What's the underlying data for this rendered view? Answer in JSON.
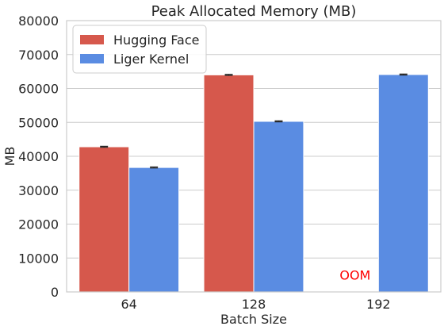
{
  "chart_data": {
    "type": "bar",
    "title": "Peak Allocated Memory (MB)",
    "xlabel": "Batch Size",
    "ylabel": "MB",
    "categories": [
      "64",
      "128",
      "192"
    ],
    "ylim": [
      0,
      80000
    ],
    "yticks": [
      0,
      10000,
      20000,
      30000,
      40000,
      50000,
      60000,
      70000,
      80000
    ],
    "grid": true,
    "legend_position": "top-left",
    "series": [
      {
        "name": "Hugging Face",
        "color": "#d6584c",
        "values": [
          42800,
          64000,
          null
        ],
        "error": [
          150,
          150,
          0
        ]
      },
      {
        "name": "Liger Kernel",
        "color": "#5a8ce2",
        "values": [
          36700,
          50300,
          64100
        ],
        "error": [
          150,
          150,
          150
        ]
      }
    ],
    "annotations": [
      {
        "text": "OOM",
        "category_index": 2,
        "series_index": 0,
        "y": 5000,
        "color": "#ff0000"
      }
    ]
  }
}
